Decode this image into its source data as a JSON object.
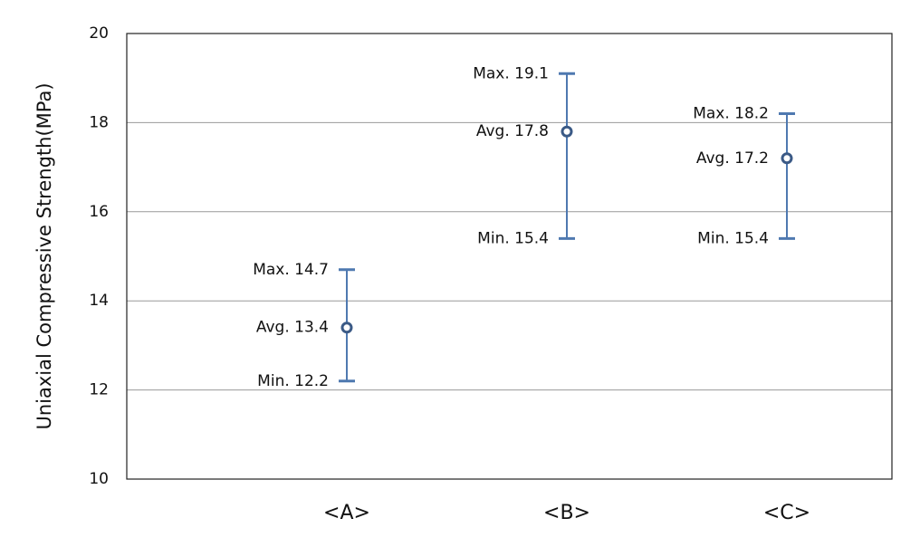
{
  "chart_data": {
    "type": "errorbar",
    "y_label": "Uniaxial Compressive Strength(MPa)",
    "categories": [
      "<A>",
      "<B>",
      "<C>"
    ],
    "series": [
      {
        "values": [
          12.2,
          15.4,
          15.4
        ],
        "value_labels": [
          "Min. 12.2",
          "Min. 15.4",
          "Min. 15.4"
        ],
        "color": "#4f79b0"
      },
      {
        "values": [
          13.4,
          17.8,
          17.2
        ],
        "value_labels": [
          "Avg. 13.4",
          "Avg. 17.8",
          "Avg. 17.2"
        ],
        "color": "#3b5a86"
      },
      {
        "values": [
          14.7,
          19.1,
          18.2
        ],
        "value_labels": [
          "Max. 14.7",
          "Max. 19.1",
          "Max. 18.2"
        ],
        "color": "#4f79b0"
      }
    ],
    "ylim": [
      10,
      20
    ],
    "yticks": [
      10,
      12,
      14,
      16,
      18,
      20
    ],
    "grid": true
  }
}
